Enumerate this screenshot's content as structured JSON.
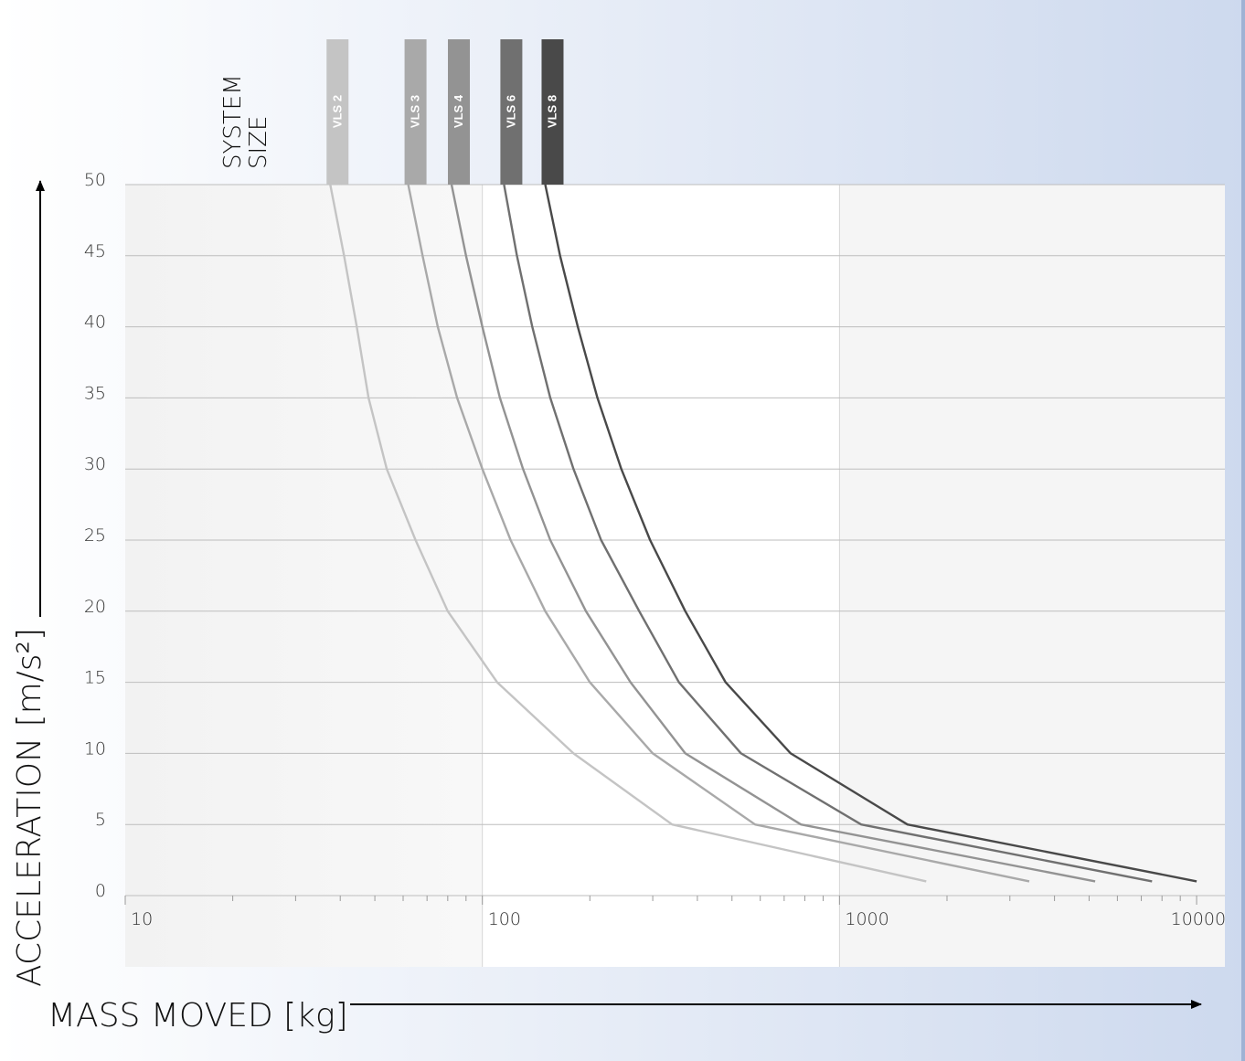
{
  "chart_data": {
    "type": "line",
    "x_scale": "log",
    "xlim": [
      10,
      12000
    ],
    "ylim": [
      0,
      50
    ],
    "xlabel": "MASS MOVED [kg]",
    "ylabel": "ACCELERATION [m/s²]",
    "legend_title": [
      "SYSTEM",
      "SIZE"
    ],
    "x_ticks": [
      {
        "value": 10,
        "label": "10"
      },
      {
        "value": 100,
        "label": "100"
      },
      {
        "value": 1000,
        "label": "1000"
      },
      {
        "value": 10000,
        "label": "10000"
      }
    ],
    "y_ticks": [
      0,
      5,
      10,
      15,
      20,
      25,
      30,
      35,
      40,
      45,
      50
    ],
    "grid": "horizontal",
    "series": [
      {
        "name": "VLS 2",
        "color": "#c4c4c4",
        "points": [
          [
            37.5,
            50
          ],
          [
            41,
            45
          ],
          [
            44.5,
            40
          ],
          [
            48,
            35
          ],
          [
            54,
            30
          ],
          [
            65,
            25
          ],
          [
            80,
            20
          ],
          [
            110,
            15
          ],
          [
            180,
            10
          ],
          [
            340,
            5
          ],
          [
            1750,
            1
          ]
        ]
      },
      {
        "name": "VLS 3",
        "color": "#a9a9a9",
        "points": [
          [
            62,
            50
          ],
          [
            68,
            45
          ],
          [
            75,
            40
          ],
          [
            85,
            35
          ],
          [
            100,
            30
          ],
          [
            120,
            25
          ],
          [
            150,
            20
          ],
          [
            200,
            15
          ],
          [
            300,
            10
          ],
          [
            580,
            5
          ],
          [
            3400,
            1
          ]
        ]
      },
      {
        "name": "VLS 4",
        "color": "#939393",
        "points": [
          [
            82,
            50
          ],
          [
            90,
            45
          ],
          [
            100,
            40
          ],
          [
            112,
            35
          ],
          [
            130,
            30
          ],
          [
            155,
            25
          ],
          [
            195,
            20
          ],
          [
            260,
            15
          ],
          [
            370,
            10
          ],
          [
            780,
            5
          ],
          [
            5200,
            1
          ]
        ]
      },
      {
        "name": "VLS 6",
        "color": "#707070",
        "points": [
          [
            115,
            50
          ],
          [
            125,
            45
          ],
          [
            138,
            40
          ],
          [
            155,
            35
          ],
          [
            180,
            30
          ],
          [
            215,
            25
          ],
          [
            275,
            20
          ],
          [
            355,
            15
          ],
          [
            530,
            10
          ],
          [
            1150,
            5
          ],
          [
            7500,
            1
          ]
        ]
      },
      {
        "name": "VLS 8",
        "color": "#494949",
        "points": [
          [
            150,
            50
          ],
          [
            165,
            45
          ],
          [
            185,
            40
          ],
          [
            210,
            35
          ],
          [
            245,
            30
          ],
          [
            295,
            25
          ],
          [
            370,
            20
          ],
          [
            480,
            15
          ],
          [
            730,
            10
          ],
          [
            1550,
            5
          ],
          [
            10000,
            1
          ]
        ]
      }
    ]
  }
}
